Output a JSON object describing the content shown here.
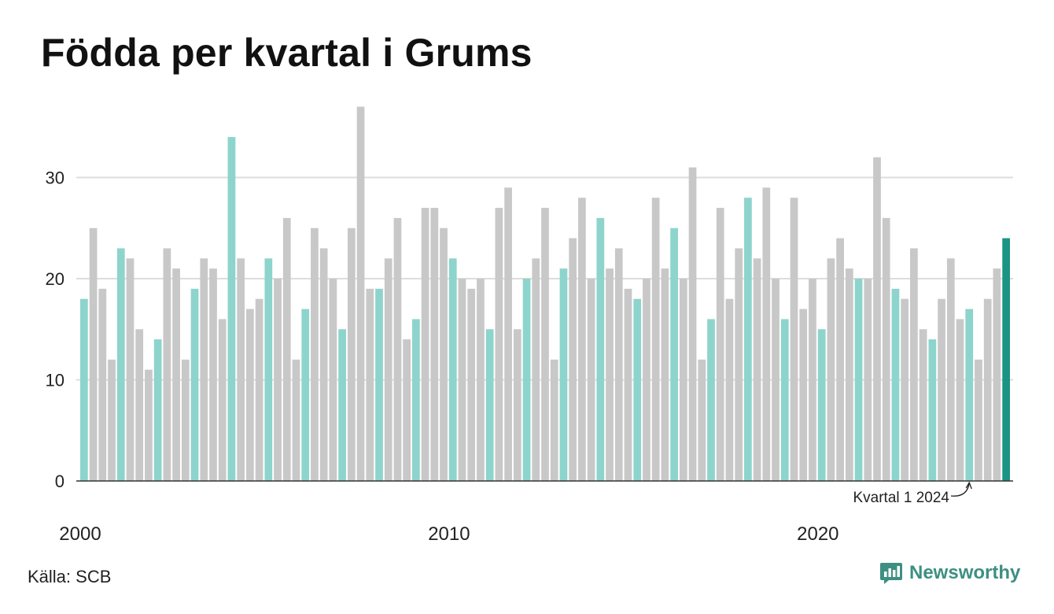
{
  "title": "Födda per kvartal i Grums",
  "source": "Källa: SCB",
  "brand": "Newsworthy",
  "colors": {
    "grey": "#c8c8c8",
    "teal_light": "#8dd4cc",
    "teal_dark": "#1a9484",
    "grid": "#dddddd",
    "axis": "#333333"
  },
  "chart_data": {
    "type": "bar",
    "title": "Födda per kvartal i Grums",
    "xlabel": "",
    "ylabel": "",
    "ylim": [
      0,
      37
    ],
    "yticks": [
      0,
      10,
      20,
      30
    ],
    "xticks": [
      2000,
      2010,
      2020
    ],
    "start_year": 2000,
    "grid": true,
    "highlight": "first quarter of each year (teal), latest bar dark teal",
    "annotation": "Kvartal 1 2024",
    "values": [
      18,
      25,
      19,
      12,
      23,
      22,
      15,
      11,
      14,
      23,
      21,
      12,
      19,
      22,
      21,
      16,
      34,
      22,
      17,
      18,
      22,
      20,
      26,
      12,
      17,
      25,
      23,
      20,
      15,
      25,
      37,
      19,
      19,
      22,
      26,
      14,
      16,
      27,
      27,
      25,
      22,
      20,
      19,
      20,
      15,
      27,
      29,
      15,
      20,
      22,
      27,
      12,
      21,
      24,
      28,
      20,
      26,
      21,
      23,
      19,
      18,
      20,
      28,
      21,
      25,
      20,
      31,
      12,
      16,
      27,
      18,
      23,
      28,
      22,
      29,
      20,
      16,
      28,
      17,
      20,
      15,
      22,
      24,
      21,
      20,
      20,
      32,
      26,
      19,
      18,
      23,
      15,
      14,
      18,
      22,
      16,
      17,
      12,
      18,
      21,
      24
    ]
  }
}
